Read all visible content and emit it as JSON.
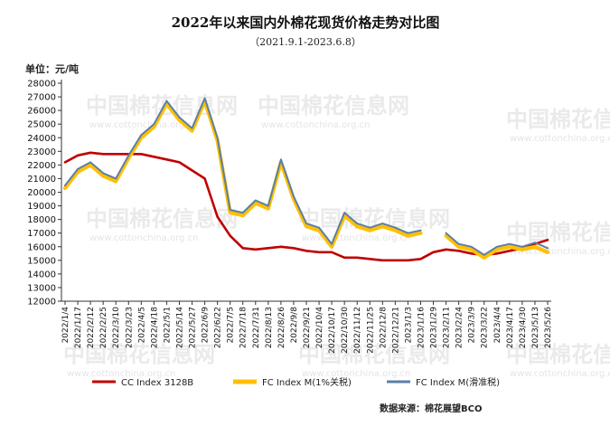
{
  "chart_data": {
    "type": "line",
    "title": "2022年以来国内外棉花现货价格走势对比图",
    "subtitle": "（2021.9.1-2023.6.8）",
    "ylabel": "单位：元/吨",
    "xlabel": "",
    "ylim": [
      12000,
      28000
    ],
    "yticks": [
      12000,
      13000,
      14000,
      15000,
      16000,
      17000,
      18000,
      19000,
      20000,
      21000,
      22000,
      23000,
      24000,
      25000,
      26000,
      27000,
      28000
    ],
    "grid": false,
    "legend_position": "bottom",
    "categories": [
      "2022/1/4",
      "2022/1/17",
      "2022/2/12",
      "2022/2/25",
      "2022/3/10",
      "2022/3/23",
      "2022/4/5",
      "2022/4/18",
      "2022/5/1",
      "2022/5/14",
      "2022/5/27",
      "2022/6/9",
      "2022/6/22",
      "2022/7/5",
      "2022/7/18",
      "2022/7/31",
      "2022/8/13",
      "2022/8/26",
      "2022/9/8",
      "2022/9/21",
      "2022/10/4",
      "2022/10/17",
      "2022/10/30",
      "2022/11/12",
      "2022/11/25",
      "2022/12/8",
      "2022/12/21",
      "2023/1/3",
      "2023/1/16",
      "2023/1/29",
      "2023/2/11",
      "2023/2/24",
      "2023/3/9",
      "2023/3/22",
      "2023/4/4",
      "2023/4/17",
      "2023/4/30",
      "2023/5/13",
      "2023/5/26"
    ],
    "series": [
      {
        "name": "CC Index 3128B",
        "color": "#c00000",
        "values": [
          22200,
          22700,
          22900,
          22800,
          22800,
          22800,
          22800,
          22600,
          22400,
          22200,
          21600,
          21000,
          18200,
          16800,
          15900,
          15800,
          15900,
          16000,
          15900,
          15700,
          15600,
          15600,
          15200,
          15200,
          15100,
          15000,
          15000,
          15000,
          15100,
          15600,
          15800,
          15700,
          15500,
          15400,
          15500,
          15700,
          15900,
          16200,
          16500
        ]
      },
      {
        "name": "FC Index M(1%关税)",
        "color": "#ffc000",
        "values": [
          20300,
          21500,
          22000,
          21200,
          20800,
          22500,
          24000,
          24800,
          26500,
          25300,
          24500,
          26700,
          23800,
          18500,
          18300,
          19200,
          18800,
          22200,
          19500,
          17500,
          17200,
          16000,
          18300,
          17500,
          17200,
          17500,
          17200,
          16800,
          17000,
          null,
          16800,
          16000,
          15800,
          15200,
          15800,
          16000,
          15800,
          16000,
          15600
        ]
      },
      {
        "name": "FC Index M(滑准税)",
        "color": "#5b7fa6",
        "values": [
          20500,
          21700,
          22200,
          21400,
          21000,
          22700,
          24200,
          25000,
          26700,
          25500,
          24700,
          26900,
          24000,
          18700,
          18500,
          19400,
          19000,
          22400,
          19700,
          17700,
          17400,
          16200,
          18500,
          17700,
          17400,
          17700,
          17400,
          17000,
          17200,
          null,
          17000,
          16200,
          16000,
          15400,
          16000,
          16200,
          16000,
          16300,
          15900
        ]
      }
    ],
    "source": "数据来源：棉花展望BCO"
  },
  "watermark": {
    "text": "中国棉花信息网",
    "subtext": "www.cottonchina.org.cn"
  }
}
